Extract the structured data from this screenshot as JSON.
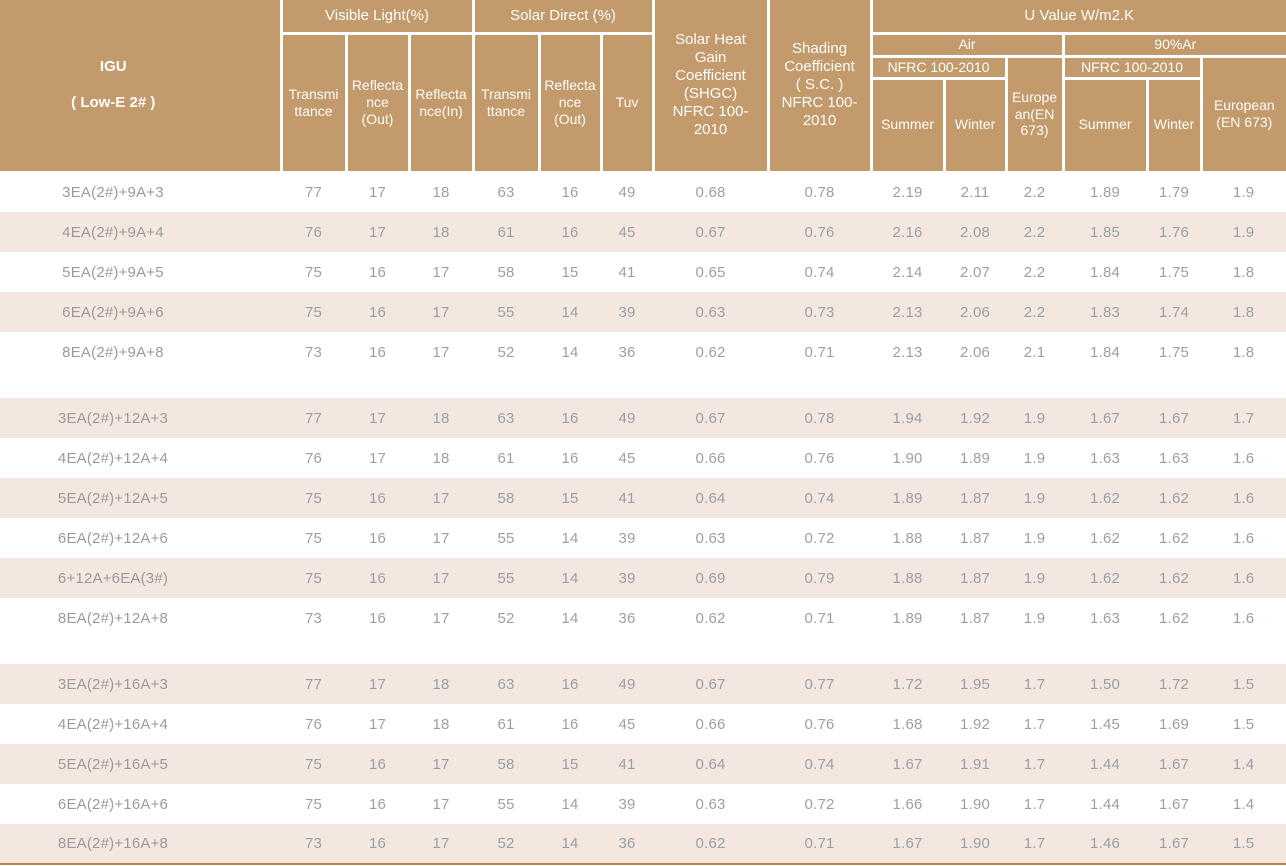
{
  "colors": {
    "header_bg": "#c29a6b",
    "header_text": "#ffffff",
    "row_shaded_bg": "#f3e7e0",
    "body_text": "#9aa0a8",
    "bottom_border": "#b5834e"
  },
  "header": {
    "igu_title": "IGU",
    "igu_subtitle": "( Low-E 2# )",
    "visible_light": "Visible Light(%)",
    "solar_direct": "Solar Direct (%)",
    "vl_transmittance": "Transmi\nttance",
    "vl_reflectance_out": "Reflecta\nnce\n(Out)",
    "vl_reflectance_in": "Reflecta\nnce(In)",
    "sd_transmittance": "Transmi\nttance",
    "sd_reflectance_out": "Reflecta\nnce\n(Out)",
    "tuv": "Tuv",
    "shgc": "Solar Heat\nGain\nCoefficient\n(SHGC)\nNFRC 100-\n2010",
    "shading_coefficient": "Shading\nCoefficient\n( S.C. )\nNFRC 100-\n2010",
    "u_value": "U Value W/m2.K",
    "air": "Air",
    "argon": "90%Ar",
    "air_nfrc": "NFRC 100-2010",
    "argon_nfrc": "NFRC 100-2010",
    "air_summer": "Summer",
    "air_winter": "Winter",
    "air_european": "Europe\nan(EN\n673)",
    "argon_summer": "Summer",
    "argon_winter": "Winter",
    "argon_european": "European\n(EN 673)"
  },
  "body_groups": [
    {
      "rows": [
        {
          "label": "3EA(2#)+9A+3",
          "values": [
            "77",
            "17",
            "18",
            "63",
            "16",
            "49",
            "0.68",
            "0.78",
            "2.19",
            "2.11",
            "2.2",
            "1.89",
            "1.79",
            "1.9"
          ]
        },
        {
          "label": "4EA(2#)+9A+4",
          "values": [
            "76",
            "17",
            "18",
            "61",
            "16",
            "45",
            "0.67",
            "0.76",
            "2.16",
            "2.08",
            "2.2",
            "1.85",
            "1.76",
            "1.9"
          ]
        },
        {
          "label": "5EA(2#)+9A+5",
          "values": [
            "75",
            "16",
            "17",
            "58",
            "15",
            "41",
            "0.65",
            "0.74",
            "2.14",
            "2.07",
            "2.2",
            "1.84",
            "1.75",
            "1.8"
          ]
        },
        {
          "label": "6EA(2#)+9A+6",
          "values": [
            "75",
            "16",
            "17",
            "55",
            "14",
            "39",
            "0.63",
            "0.73",
            "2.13",
            "2.06",
            "2.2",
            "1.83",
            "1.74",
            "1.8"
          ]
        },
        {
          "label": "8EA(2#)+9A+8",
          "values": [
            "73",
            "16",
            "17",
            "52",
            "14",
            "36",
            "0.62",
            "0.71",
            "2.13",
            "2.06",
            "2.1",
            "1.84",
            "1.75",
            "1.8"
          ]
        }
      ]
    },
    {
      "rows": [
        {
          "label": "3EA(2#)+12A+3",
          "values": [
            "77",
            "17",
            "18",
            "63",
            "16",
            "49",
            "0.67",
            "0.78",
            "1.94",
            "1.92",
            "1.9",
            "1.67",
            "1.67",
            "1.7"
          ]
        },
        {
          "label": "4EA(2#)+12A+4",
          "values": [
            "76",
            "17",
            "18",
            "61",
            "16",
            "45",
            "0.66",
            "0.76",
            "1.90",
            "1.89",
            "1.9",
            "1.63",
            "1.63",
            "1.6"
          ]
        },
        {
          "label": "5EA(2#)+12A+5",
          "values": [
            "75",
            "16",
            "17",
            "58",
            "15",
            "41",
            "0.64",
            "0.74",
            "1.89",
            "1.87",
            "1.9",
            "1.62",
            "1.62",
            "1.6"
          ]
        },
        {
          "label": "6EA(2#)+12A+6",
          "values": [
            "75",
            "16",
            "17",
            "55",
            "14",
            "39",
            "0.63",
            "0.72",
            "1.88",
            "1.87",
            "1.9",
            "1.62",
            "1.62",
            "1.6"
          ]
        },
        {
          "label": "6+12A+6EA(3#)",
          "values": [
            "75",
            "16",
            "17",
            "55",
            "14",
            "39",
            "0.69",
            "0.79",
            "1.88",
            "1.87",
            "1.9",
            "1.62",
            "1.62",
            "1.6"
          ]
        },
        {
          "label": "8EA(2#)+12A+8",
          "values": [
            "73",
            "16",
            "17",
            "52",
            "14",
            "36",
            "0.62",
            "0.71",
            "1.89",
            "1.87",
            "1.9",
            "1.63",
            "1.62",
            "1.6"
          ]
        }
      ]
    },
    {
      "rows": [
        {
          "label": "3EA(2#)+16A+3",
          "values": [
            "77",
            "17",
            "18",
            "63",
            "16",
            "49",
            "0.67",
            "0.77",
            "1.72",
            "1.95",
            "1.7",
            "1.50",
            "1.72",
            "1.5"
          ]
        },
        {
          "label": "4EA(2#)+16A+4",
          "values": [
            "76",
            "17",
            "18",
            "61",
            "16",
            "45",
            "0.66",
            "0.76",
            "1.68",
            "1.92",
            "1.7",
            "1.45",
            "1.69",
            "1.5"
          ]
        },
        {
          "label": "5EA(2#)+16A+5",
          "values": [
            "75",
            "16",
            "17",
            "58",
            "15",
            "41",
            "0.64",
            "0.74",
            "1.67",
            "1.91",
            "1.7",
            "1.44",
            "1.67",
            "1.4"
          ]
        },
        {
          "label": "6EA(2#)+16A+6",
          "values": [
            "75",
            "16",
            "17",
            "55",
            "14",
            "39",
            "0.63",
            "0.72",
            "1.66",
            "1.90",
            "1.7",
            "1.44",
            "1.67",
            "1.4"
          ]
        },
        {
          "label": "8EA(2#)+16A+8",
          "values": [
            "73",
            "16",
            "17",
            "52",
            "14",
            "36",
            "0.62",
            "0.71",
            "1.67",
            "1.90",
            "1.7",
            "1.46",
            "1.67",
            "1.5"
          ]
        }
      ]
    }
  ]
}
